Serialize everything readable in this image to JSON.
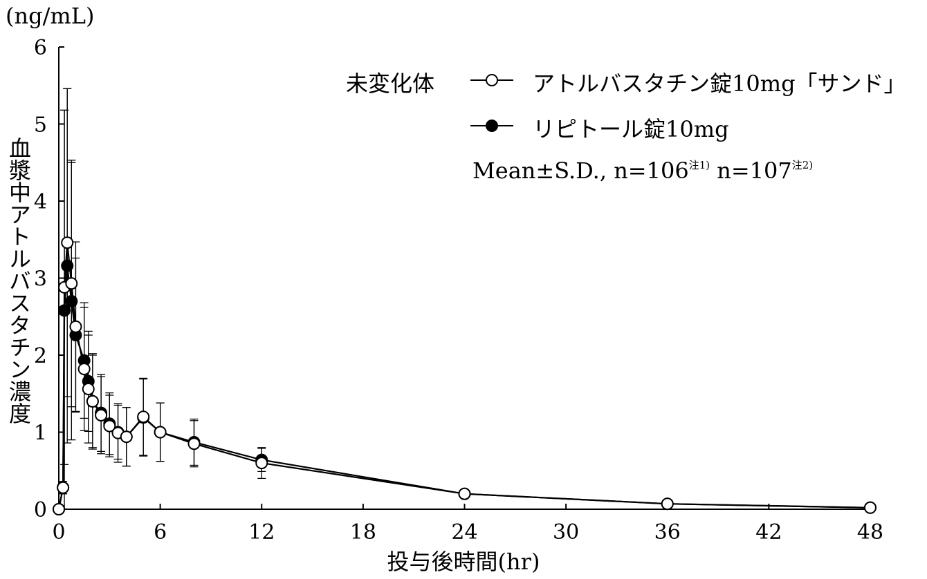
{
  "chart_data": {
    "type": "line",
    "unit_label": "(ng/mL)",
    "ylabel": "血漿中アトルバスタチン濃度",
    "xlabel": "投与後時間(hr)",
    "xlim": [
      0,
      48
    ],
    "ylim": [
      0,
      6
    ],
    "x_ticks": [
      "0",
      "6",
      "12",
      "18",
      "24",
      "30",
      "36",
      "42",
      "48"
    ],
    "y_ticks": [
      "0",
      "1",
      "2",
      "3",
      "4",
      "5",
      "6"
    ],
    "grid": false,
    "legend_position": "top-right",
    "legend_group_label": "未変化体",
    "stats_text": "Mean±S.D., n=106",
    "stats_note1": "注1)",
    "stats_text2": "n=107",
    "stats_note2": "注2)",
    "series": [
      {
        "name": "アトルバスタチン錠10mg「サンド」",
        "marker": "open-circle",
        "x": [
          0,
          0.25,
          0.33,
          0.5,
          0.75,
          1,
          1.5,
          1.75,
          2,
          2.5,
          3,
          3.5,
          4,
          5,
          6,
          8,
          12,
          24,
          36,
          48
        ],
        "y": [
          0,
          0.28,
          2.88,
          3.46,
          2.93,
          2.37,
          1.82,
          1.56,
          1.4,
          1.22,
          1.08,
          0.99,
          0.94,
          1.2,
          1.0,
          0.85,
          0.6,
          0.2,
          0.07,
          0.02
        ],
        "sd": [
          0,
          0.08,
          2.3,
          2.0,
          1.6,
          1.1,
          0.8,
          0.7,
          0.62,
          0.5,
          0.4,
          0.38,
          0.38,
          0.5,
          0.38,
          0.3,
          0.2,
          0.05,
          0.02,
          0.01
        ]
      },
      {
        "name": "リピトール錠10mg",
        "marker": "filled-circle",
        "x": [
          0,
          0.25,
          0.33,
          0.5,
          0.75,
          1,
          1.5,
          1.75,
          2,
          2.5,
          3,
          3.5,
          4,
          5,
          6,
          8,
          12,
          24,
          36,
          48
        ],
        "y": [
          0,
          0.28,
          2.58,
          3.16,
          2.7,
          2.26,
          1.93,
          1.66,
          1.4,
          1.25,
          1.11,
          1.0,
          0.94,
          1.19,
          1.0,
          0.87,
          0.64,
          0.2,
          0.07,
          0.02
        ],
        "sd": [
          0,
          0.08,
          2.6,
          2.3,
          1.8,
          1.0,
          0.75,
          0.65,
          0.6,
          0.5,
          0.4,
          0.35,
          0.38,
          0.5,
          0.38,
          0.3,
          0.15,
          0.05,
          0.02,
          0.01
        ]
      }
    ]
  }
}
